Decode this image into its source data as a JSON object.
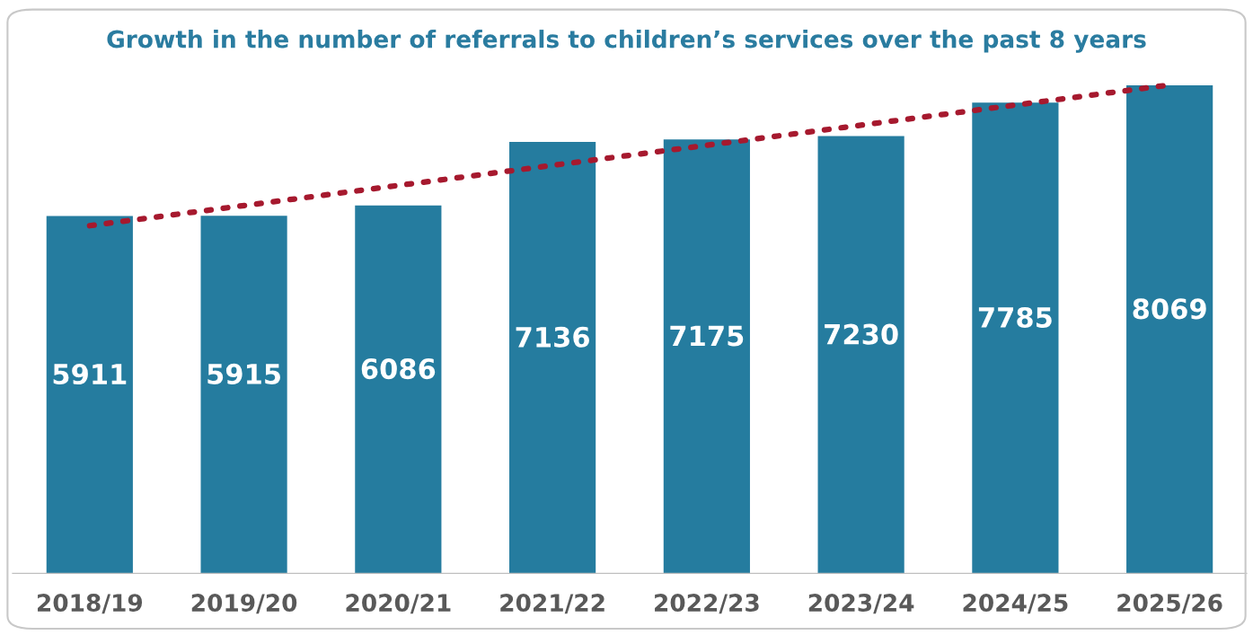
{
  "chart_data": {
    "type": "bar",
    "title": "Growth in the number of referrals to children’s services over the past 8 years",
    "categories": [
      "2018/19",
      "2019/20",
      "2020/21",
      "2021/22",
      "2022/23",
      "2023/24",
      "2024/25",
      "2025/26"
    ],
    "series": [
      {
        "color": "#257c9f",
        "values": [
          5911,
          5915,
          6086,
          7136,
          7175,
          7230,
          7785,
          8069
        ],
        "value_labels": [
          "5911",
          "5915",
          "6086",
          "7136",
          "7175",
          "7230",
          "7785",
          "8069"
        ]
      },
      {
        "type": "line",
        "color": "#a6192e",
        "x": [
          "2018/19",
          "2025/26"
        ],
        "values": [
          5750,
          8077
        ],
        "line_style": "dotted"
      }
    ],
    "grid": false,
    "legend": false
  }
}
